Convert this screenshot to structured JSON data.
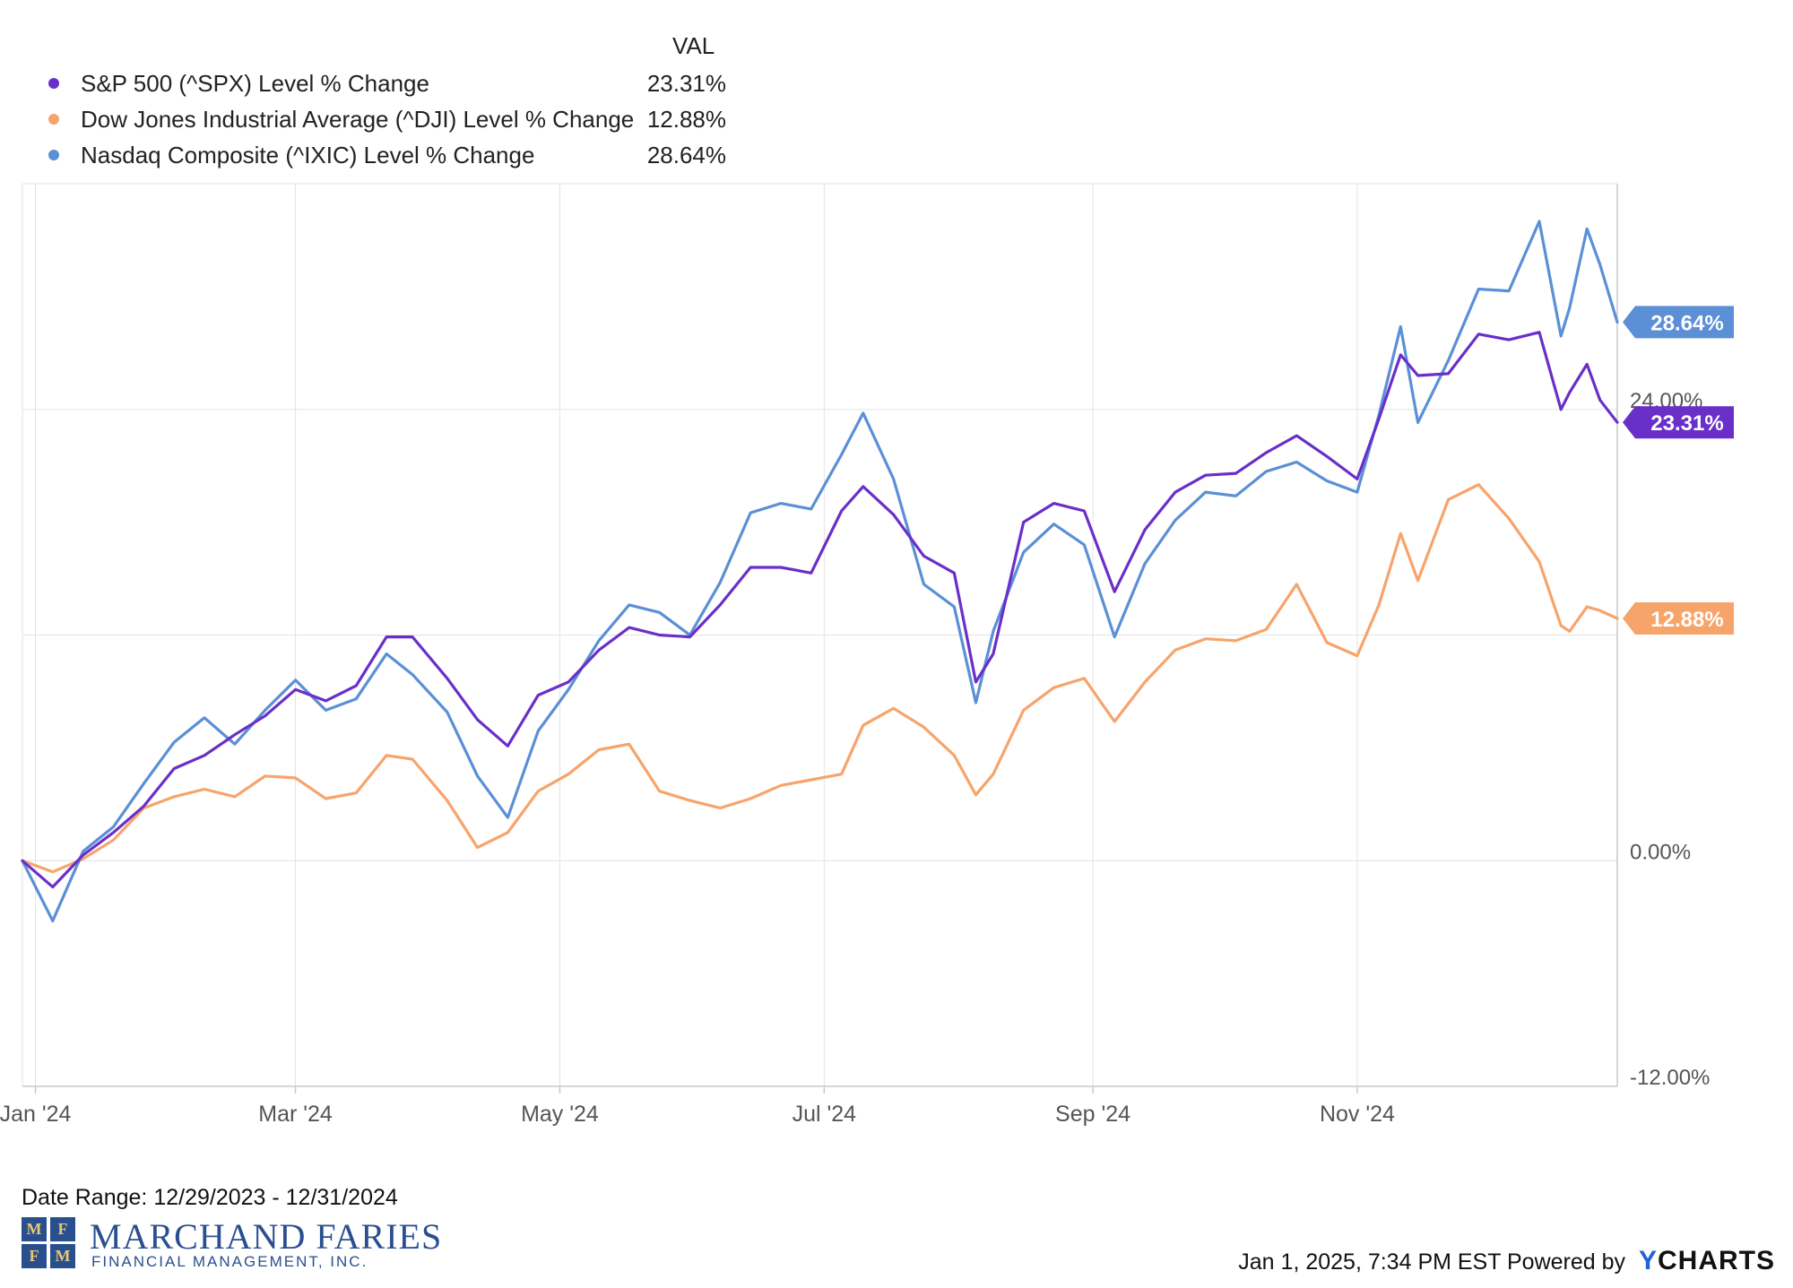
{
  "legend": {
    "header": "VAL",
    "items": [
      {
        "name": "S&P 500 (^SPX) Level % Change",
        "value": "23.31%",
        "color": "#6a2fc9"
      },
      {
        "name": "Dow Jones Industrial Average (^DJI) Level % Change",
        "value": "12.88%",
        "color": "#f7a46b"
      },
      {
        "name": "Nasdaq Composite (^IXIC) Level % Change",
        "value": "28.64%",
        "color": "#5b8fd6"
      }
    ]
  },
  "footer": {
    "date_range": "Date Range: 12/29/2023 - 12/31/2024",
    "timestamp": "Jan 1, 2025, 7:34 PM EST Powered by",
    "ycharts_y": "Y",
    "ycharts_rest": "CHARTS"
  },
  "logo": {
    "letters": [
      "M",
      "F",
      "F",
      "M"
    ],
    "name": "MARCHAND FARIES",
    "subtitle": "FINANCIAL MANAGEMENT, INC."
  },
  "chart_data": {
    "type": "line",
    "x_ticks": [
      "Jan '24",
      "Mar '24",
      "May '24",
      "Jul '24",
      "Sep '24",
      "Nov '24"
    ],
    "y_ticks": [
      "24.00%",
      "0.00%",
      "-12.00%"
    ],
    "ylim": [
      -12,
      36
    ],
    "grid": true,
    "legend_position": "top-left",
    "x_dates": [
      "2023-12-29",
      "2024-01-05",
      "2024-01-12",
      "2024-01-19",
      "2024-01-26",
      "2024-02-02",
      "2024-02-09",
      "2024-02-16",
      "2024-02-23",
      "2024-03-01",
      "2024-03-08",
      "2024-03-15",
      "2024-03-22",
      "2024-03-28",
      "2024-04-05",
      "2024-04-12",
      "2024-04-19",
      "2024-04-26",
      "2024-05-03",
      "2024-05-10",
      "2024-05-17",
      "2024-05-24",
      "2024-05-31",
      "2024-06-07",
      "2024-06-14",
      "2024-06-21",
      "2024-06-28",
      "2024-07-05",
      "2024-07-10",
      "2024-07-17",
      "2024-07-24",
      "2024-07-31",
      "2024-08-05",
      "2024-08-09",
      "2024-08-16",
      "2024-08-23",
      "2024-08-30",
      "2024-09-06",
      "2024-09-13",
      "2024-09-20",
      "2024-09-27",
      "2024-10-04",
      "2024-10-11",
      "2024-10-18",
      "2024-10-25",
      "2024-11-01",
      "2024-11-06",
      "2024-11-11",
      "2024-11-15",
      "2024-11-22",
      "2024-11-29",
      "2024-12-06",
      "2024-12-13",
      "2024-12-18",
      "2024-12-20",
      "2024-12-24",
      "2024-12-27",
      "2024-12-31"
    ],
    "series": [
      {
        "name": "S&P 500 (^SPX) Level % Change",
        "color": "#6a2fc9",
        "end_label": "23.31%",
        "values": [
          0,
          -1.4,
          0.3,
          1.5,
          2.9,
          4.9,
          5.6,
          6.7,
          7.7,
          9.1,
          8.5,
          9.3,
          11.9,
          11.9,
          9.7,
          7.5,
          6.1,
          8.8,
          9.5,
          11.2,
          12.4,
          12.0,
          11.9,
          13.6,
          15.6,
          15.6,
          15.3,
          18.6,
          19.9,
          18.4,
          16.2,
          15.3,
          9.5,
          11.0,
          18.0,
          19.0,
          18.6,
          14.3,
          17.6,
          19.6,
          20.5,
          20.6,
          21.7,
          22.6,
          21.5,
          20.3,
          23.5,
          26.9,
          25.8,
          25.9,
          28.0,
          27.7,
          28.1,
          24.0,
          24.9,
          26.4,
          24.5,
          23.31
        ]
      },
      {
        "name": "Dow Jones Industrial Average (^DJI) Level % Change",
        "color": "#f7a46b",
        "end_label": "12.88%",
        "values": [
          0,
          -0.6,
          0.1,
          1.1,
          2.8,
          3.4,
          3.8,
          3.4,
          4.5,
          4.4,
          3.3,
          3.6,
          5.6,
          5.4,
          3.2,
          0.7,
          1.5,
          3.7,
          4.6,
          5.9,
          6.2,
          3.7,
          3.2,
          2.8,
          3.3,
          4.0,
          4.3,
          4.6,
          7.2,
          8.1,
          7.1,
          5.6,
          3.5,
          4.6,
          8.0,
          9.2,
          9.7,
          7.4,
          9.5,
          11.2,
          11.8,
          11.7,
          12.3,
          14.7,
          11.6,
          10.9,
          13.6,
          17.4,
          14.9,
          19.2,
          20.0,
          18.2,
          15.9,
          12.5,
          12.2,
          13.5,
          13.3,
          12.88
        ]
      },
      {
        "name": "Nasdaq Composite (^IXIC) Level % Change",
        "color": "#5b8fd6",
        "end_label": "28.64%",
        "values": [
          0,
          -3.2,
          0.5,
          1.8,
          4.1,
          6.3,
          7.6,
          6.2,
          8.0,
          9.6,
          8.0,
          8.6,
          11.0,
          9.9,
          7.9,
          4.5,
          2.3,
          6.9,
          9.1,
          11.7,
          13.6,
          13.2,
          12.0,
          14.8,
          18.5,
          19.0,
          18.7,
          21.6,
          23.8,
          20.3,
          14.7,
          13.5,
          8.4,
          12.2,
          16.4,
          17.9,
          16.8,
          11.9,
          15.8,
          18.1,
          19.6,
          19.4,
          20.7,
          21.2,
          20.2,
          19.6,
          23.7,
          28.4,
          23.3,
          26.6,
          30.4,
          30.3,
          34.0,
          27.9,
          29.4,
          33.6,
          31.7,
          28.64
        ]
      }
    ]
  }
}
